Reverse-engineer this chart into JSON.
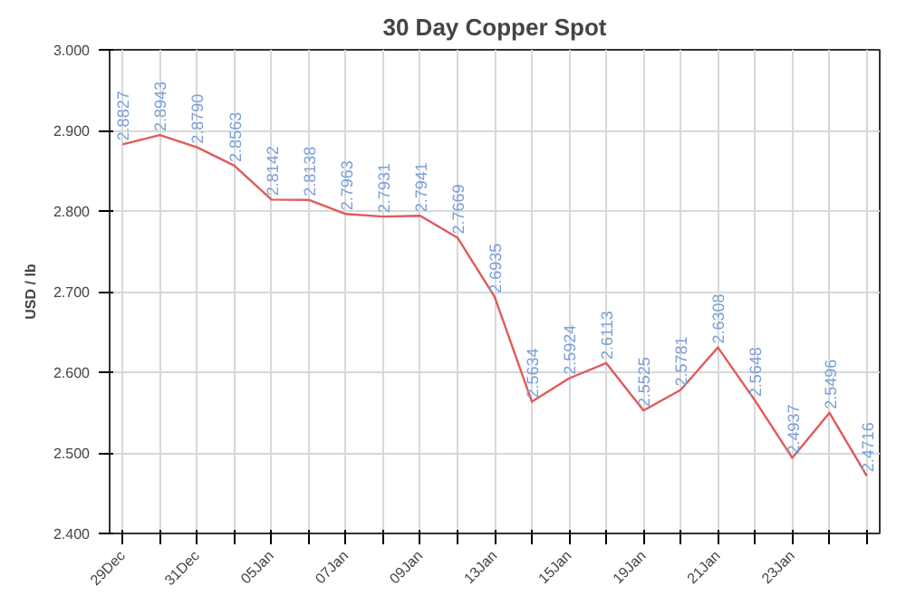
{
  "chart_data": {
    "type": "line",
    "title": "30 Day Copper Spot",
    "ylabel": "USD / lb",
    "categories": [
      "29Dec",
      null,
      "31Dec",
      null,
      "05Jan",
      null,
      "07Jan",
      null,
      "09Jan",
      null,
      "13Jan",
      null,
      "15Jan",
      null,
      "19Jan",
      null,
      "21Jan",
      null,
      "23Jan",
      null,
      null
    ],
    "series": [
      {
        "color": "#e05a5a",
        "values": [
          2.8827,
          2.8943,
          2.879,
          2.8563,
          2.8142,
          2.8138,
          2.7963,
          2.7931,
          2.7941,
          2.7669,
          2.6935,
          2.5634,
          2.5924,
          2.6113,
          2.5525,
          2.5781,
          2.6308,
          2.5648,
          2.4937,
          2.5496,
          2.4716
        ]
      }
    ],
    "value_labels": [
      "2.8827",
      "2.8943",
      "2.8790",
      "2.8563",
      "2.8142",
      "2.8138",
      "2.7963",
      "2.7931",
      "2.7941",
      "2.7669",
      "2.6935",
      "2.5634",
      "2.5924",
      "2.6113",
      "2.5525",
      "2.5781",
      "2.6308",
      "2.5648",
      "2.4937",
      "2.5496",
      "2.4716"
    ],
    "ylim": [
      2.4,
      3.0
    ],
    "yticks": [
      {
        "value": 2.4,
        "label": "2.400"
      },
      {
        "value": 2.5,
        "label": "2.500"
      },
      {
        "value": 2.6,
        "label": "2.600"
      },
      {
        "value": 2.7,
        "label": "2.700"
      },
      {
        "value": 2.8,
        "label": "2.800"
      },
      {
        "value": 2.9,
        "label": "2.900"
      },
      {
        "value": 3.0,
        "label": "3.000"
      }
    ],
    "grid": true
  }
}
